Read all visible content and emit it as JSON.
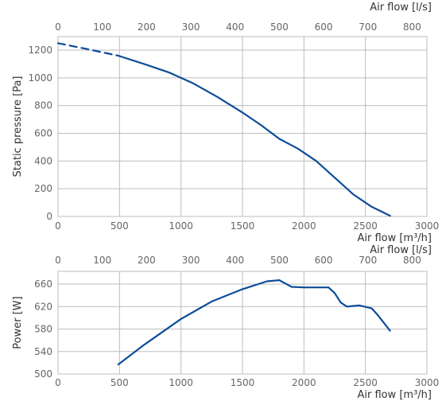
{
  "chart_data": [
    {
      "type": "line",
      "name": "pressure-chart",
      "ylabel": "Static pressure [Pa]",
      "xlabel_bottom": "Air flow [m³/h]",
      "xlabel_top": "Air flow [l/s]",
      "xlim": [
        0,
        3000
      ],
      "ylim": [
        0,
        1300
      ],
      "xlim_top": [
        0,
        833.33
      ],
      "x_ticks": [
        "0",
        "500",
        "1000",
        "1500",
        "2000",
        "2500",
        "3000"
      ],
      "x_ticks_top": [
        "0",
        "100",
        "200",
        "300",
        "400",
        "500",
        "600",
        "700",
        "800"
      ],
      "y_ticks": [
        "0",
        "200",
        "400",
        "600",
        "800",
        "1000",
        "1200"
      ],
      "grid": true,
      "color": "#0d4c9a",
      "series": [
        {
          "style": "dashed",
          "x": [
            0,
            250,
            490
          ],
          "y": [
            1250,
            1205,
            1160
          ]
        },
        {
          "style": "solid",
          "x": [
            490,
            700,
            900,
            1100,
            1300,
            1500,
            1650,
            1800,
            1950,
            2100,
            2250,
            2400,
            2550,
            2700
          ],
          "y": [
            1160,
            1100,
            1040,
            960,
            860,
            750,
            660,
            560,
            490,
            400,
            280,
            160,
            70,
            5
          ]
        }
      ]
    },
    {
      "type": "line",
      "name": "power-chart",
      "ylabel": "Power [W]",
      "xlabel_bottom": "Air flow [m³/h]",
      "xlabel_top": "Air flow [l/s]",
      "xlim": [
        0,
        3000
      ],
      "ylim": [
        500,
        680
      ],
      "xlim_top": [
        0,
        833.33
      ],
      "x_ticks": [
        "0",
        "500",
        "1000",
        "1500",
        "2000",
        "2500",
        "3000"
      ],
      "x_ticks_top": [
        "0",
        "100",
        "200",
        "300",
        "400",
        "500",
        "600",
        "700",
        "800"
      ],
      "y_ticks": [
        "500",
        "540",
        "580",
        "620",
        "660"
      ],
      "grid": true,
      "color": "#0d4c9a",
      "series": [
        {
          "style": "solid",
          "x": [
            490,
            700,
            1000,
            1250,
            1500,
            1700,
            1800,
            1850,
            1900,
            2000,
            2100,
            2200,
            2250,
            2300,
            2350,
            2400,
            2450,
            2550,
            2600,
            2700
          ],
          "y": [
            517,
            552,
            598,
            629,
            651,
            665,
            667,
            661,
            655,
            654,
            654,
            654,
            644,
            627,
            620,
            621,
            622,
            617,
            605,
            577
          ]
        }
      ]
    }
  ]
}
